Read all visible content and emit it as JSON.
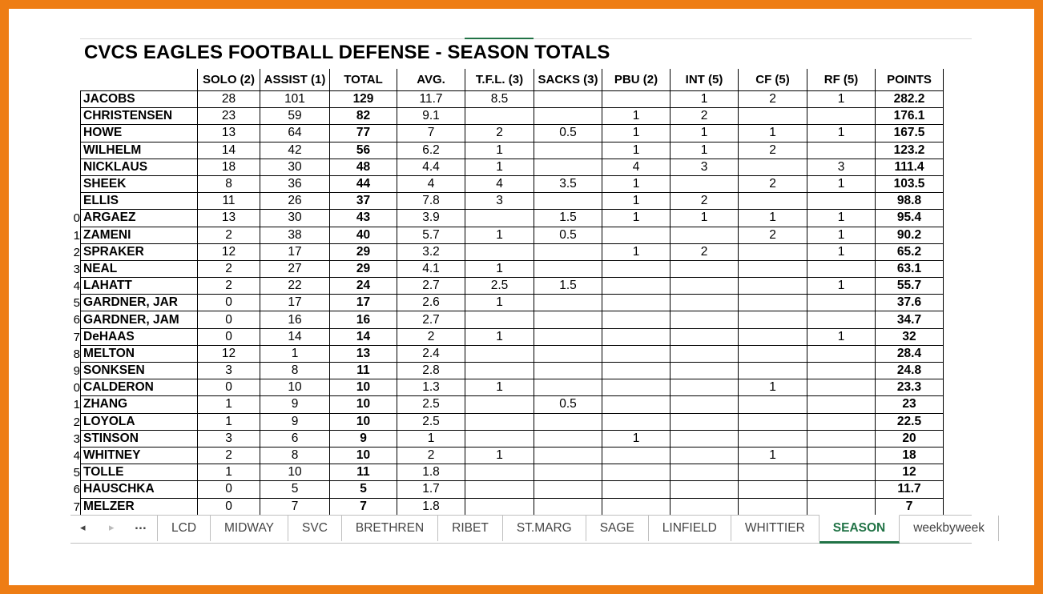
{
  "title": "CVCS EAGLES FOOTBALL DEFENSE - SEASON TOTALS",
  "columns": [
    "",
    "SOLO (2)",
    "ASSIST (1)",
    "TOTAL",
    "AVG.",
    "T.F.L. (3)",
    "SACKS (3)",
    "PBU (2)",
    "INT (5)",
    "CF (5)",
    "RF (5)",
    "POINTS"
  ],
  "row_numbers": [
    "",
    "",
    "",
    "",
    "",
    "",
    "",
    "0",
    "1",
    "2",
    "3",
    "4",
    "5",
    "6",
    "7",
    "8",
    "9",
    "0",
    "1",
    "2",
    "3",
    "4",
    "5",
    "6",
    "7"
  ],
  "rows": [
    [
      "JACOBS",
      "28",
      "101",
      "129",
      "11.7",
      "8.5",
      "",
      "",
      "1",
      "2",
      "1",
      "282.2"
    ],
    [
      "CHRISTENSEN",
      "23",
      "59",
      "82",
      "9.1",
      "",
      "",
      "1",
      "2",
      "",
      "",
      "176.1"
    ],
    [
      "HOWE",
      "13",
      "64",
      "77",
      "7",
      "2",
      "0.5",
      "1",
      "1",
      "1",
      "1",
      "167.5"
    ],
    [
      "WILHELM",
      "14",
      "42",
      "56",
      "6.2",
      "1",
      "",
      "1",
      "1",
      "2",
      "",
      "123.2"
    ],
    [
      "NICKLAUS",
      "18",
      "30",
      "48",
      "4.4",
      "1",
      "",
      "4",
      "3",
      "",
      "3",
      "111.4"
    ],
    [
      "SHEEK",
      "8",
      "36",
      "44",
      "4",
      "4",
      "3.5",
      "1",
      "",
      "2",
      "1",
      "103.5"
    ],
    [
      "ELLIS",
      "11",
      "26",
      "37",
      "7.8",
      "3",
      "",
      "1",
      "2",
      "",
      "",
      "98.8"
    ],
    [
      "ARGAEZ",
      "13",
      "30",
      "43",
      "3.9",
      "",
      "1.5",
      "1",
      "1",
      "1",
      "1",
      "95.4"
    ],
    [
      "ZAMENI",
      "2",
      "38",
      "40",
      "5.7",
      "1",
      "0.5",
      "",
      "",
      "2",
      "1",
      "90.2"
    ],
    [
      "SPRAKER",
      "12",
      "17",
      "29",
      "3.2",
      "",
      "",
      "1",
      "2",
      "",
      "1",
      "65.2"
    ],
    [
      "NEAL",
      "2",
      "27",
      "29",
      "4.1",
      "1",
      "",
      "",
      "",
      "",
      "",
      "63.1"
    ],
    [
      "LAHATT",
      "2",
      "22",
      "24",
      "2.7",
      "2.5",
      "1.5",
      "",
      "",
      "",
      "1",
      "55.7"
    ],
    [
      "GARDNER, JAR",
      "0",
      "17",
      "17",
      "2.6",
      "1",
      "",
      "",
      "",
      "",
      "",
      "37.6"
    ],
    [
      "GARDNER, JAM",
      "0",
      "16",
      "16",
      "2.7",
      "",
      "",
      "",
      "",
      "",
      "",
      "34.7"
    ],
    [
      "DeHAAS",
      "0",
      "14",
      "14",
      "2",
      "1",
      "",
      "",
      "",
      "",
      "1",
      "32"
    ],
    [
      "MELTON",
      "12",
      "1",
      "13",
      "2.4",
      "",
      "",
      "",
      "",
      "",
      "",
      "28.4"
    ],
    [
      "SONKSEN",
      "3",
      "8",
      "11",
      "2.8",
      "",
      "",
      "",
      "",
      "",
      "",
      "24.8"
    ],
    [
      "CALDERON",
      "0",
      "10",
      "10",
      "1.3",
      "1",
      "",
      "",
      "",
      "1",
      "",
      "23.3"
    ],
    [
      "ZHANG",
      "1",
      "9",
      "10",
      "2.5",
      "",
      "0.5",
      "",
      "",
      "",
      "",
      "23"
    ],
    [
      "LOYOLA",
      "1",
      "9",
      "10",
      "2.5",
      "",
      "",
      "",
      "",
      "",
      "",
      "22.5"
    ],
    [
      "STINSON",
      "3",
      "6",
      "9",
      "1",
      "",
      "",
      "1",
      "",
      "",
      "",
      "20"
    ],
    [
      "WHITNEY",
      "2",
      "8",
      "10",
      "2",
      "1",
      "",
      "",
      "",
      "1",
      "",
      "18"
    ],
    [
      "TOLLE",
      "1",
      "10",
      "11",
      "1.8",
      "",
      "",
      "",
      "",
      "",
      "",
      "12"
    ],
    [
      "HAUSCHKA",
      "0",
      "5",
      "5",
      "1.7",
      "",
      "",
      "",
      "",
      "",
      "",
      "11.7"
    ],
    [
      "MELZER",
      "0",
      "7",
      "7",
      "1.8",
      "",
      "",
      "",
      "",
      "",
      "",
      "7"
    ]
  ],
  "nav": {
    "prev_icon": "◂",
    "next_icon": "▸",
    "more_label": "..."
  },
  "tabs": [
    "LCD",
    "MIDWAY",
    "SVC",
    "BRETHREN",
    "RIBET",
    "ST.MARG",
    "SAGE",
    "LINFIELD",
    "WHITTIER",
    "SEASON",
    "weekbyweek"
  ],
  "active_tab": "SEASON",
  "colors": {
    "frame": "#ee7d14",
    "active_tab": "#217346"
  }
}
